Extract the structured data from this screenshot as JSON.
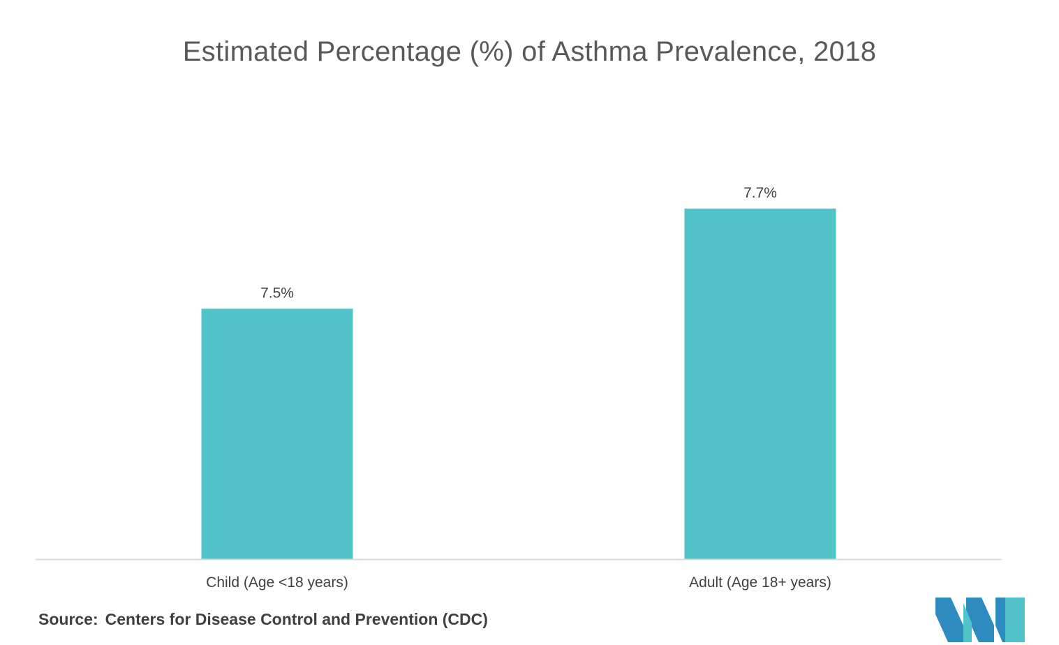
{
  "chart_data": {
    "type": "bar",
    "title": "Estimated Percentage (%) of Asthma Prevalence, 2018",
    "categories": [
      "Child (Age <18 years)",
      "Adult (Age 18+ years)"
    ],
    "values": [
      7.5,
      7.7
    ],
    "data_labels": [
      "7.5%",
      "7.7%"
    ],
    "ylim": [
      7.0,
      7.8
    ],
    "grid": false,
    "bar_color": "#52C3C8",
    "axis_color": "#D9D9D9"
  },
  "footer": {
    "source_label": "Source:",
    "source_text": "Centers for Disease Control and Prevention (CDC)"
  },
  "logo": {
    "icon": "mordor-intelligence-logo",
    "colors": [
      "#2E8BC0",
      "#52C3C8"
    ]
  }
}
